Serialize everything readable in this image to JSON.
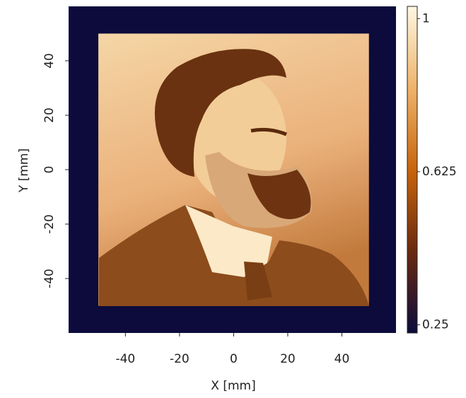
{
  "chart_data": {
    "type": "heatmap",
    "xlabel": "X [mm]",
    "ylabel": "Y [mm]",
    "xlim": [
      -61,
      60
    ],
    "ylim": [
      -60,
      60
    ],
    "xticks": [
      -40,
      -20,
      0,
      20,
      40
    ],
    "yticks": [
      -40,
      -20,
      0,
      20,
      40
    ],
    "data_extent": [
      -50,
      50,
      -50,
      50
    ],
    "background": "#0c0b3c",
    "colormap": [
      "#0c0b3c",
      "#6a2a10",
      "#c8650c",
      "#eeb36a",
      "#fdf7e2"
    ],
    "clim": [
      0.23,
      1.03
    ],
    "colorbar_ticks": [
      0.25,
      0.625,
      1
    ]
  }
}
